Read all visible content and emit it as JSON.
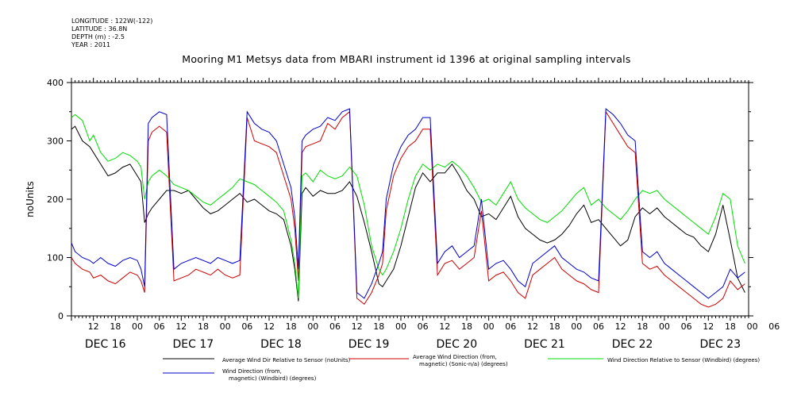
{
  "meta": {
    "longitude": "LONGITUDE : 122W(-122)",
    "latitude": "LATITUDE : 36.8N",
    "depth": "DEPTH (m) : -2.5",
    "year": "YEAR : 2011"
  },
  "chart_data": {
    "type": "line",
    "title": "Mooring M1 Metsys data from MBARI instrument id 1396 at original sampling intervals",
    "ylabel": "noUnits",
    "xlabel": "",
    "ylim": [
      0,
      400
    ],
    "yticks": [
      0,
      100,
      200,
      300,
      400
    ],
    "ytick_labels": [
      "0",
      "100",
      "200",
      "300",
      "400"
    ],
    "xlim_hours": [
      0,
      185
    ],
    "hour_tick_labels": [
      "12",
      "18",
      "00",
      "06",
      "12",
      "18",
      "00",
      "06",
      "12",
      "18",
      "00",
      "06",
      "12",
      "18",
      "00",
      "06",
      "12",
      "18",
      "00",
      "06",
      "12",
      "18",
      "00",
      "06",
      "12",
      "18",
      "00",
      "06",
      "12",
      "18",
      "00",
      "06"
    ],
    "day_labels": [
      "DEC 16",
      "DEC 17",
      "DEC 18",
      "DEC 19",
      "DEC 20",
      "DEC 21",
      "DEC 22",
      "DEC 23"
    ],
    "grid": false,
    "legend_placement": "bottom",
    "series": [
      {
        "name": "Average Wind Dir Relative to Sensor (noUnits)",
        "color": "#000000",
        "x": [
          0,
          1,
          3,
          5,
          6,
          8,
          10,
          12,
          14,
          16,
          18,
          19,
          20,
          21,
          22,
          24,
          26,
          28,
          30,
          32,
          34,
          36,
          38,
          40,
          42,
          44,
          46,
          48,
          50,
          52,
          54,
          56,
          58,
          60,
          61,
          62,
          63,
          64,
          66,
          68,
          70,
          72,
          74,
          76,
          78,
          80,
          82,
          84,
          85,
          86,
          88,
          90,
          92,
          94,
          96,
          98,
          100,
          102,
          104,
          106,
          108,
          110,
          112,
          114,
          116,
          118,
          120,
          122,
          124,
          126,
          128,
          130,
          132,
          134,
          136,
          138,
          140,
          142,
          144,
          146,
          148,
          150,
          152,
          154,
          156,
          158,
          160,
          162,
          164,
          166,
          168,
          170,
          172,
          174,
          176,
          178,
          180,
          182,
          184
        ],
        "y": [
          320,
          325,
          300,
          290,
          280,
          260,
          240,
          245,
          255,
          260,
          240,
          230,
          160,
          175,
          185,
          200,
          215,
          215,
          210,
          215,
          200,
          185,
          175,
          180,
          190,
          200,
          210,
          195,
          200,
          190,
          180,
          175,
          165,
          120,
          80,
          25,
          210,
          220,
          205,
          215,
          210,
          210,
          215,
          230,
          205,
          160,
          110,
          55,
          50,
          60,
          80,
          120,
          170,
          220,
          245,
          230,
          245,
          245,
          260,
          240,
          215,
          200,
          170,
          175,
          165,
          185,
          205,
          170,
          150,
          140,
          130,
          125,
          130,
          140,
          155,
          175,
          190,
          160,
          165,
          150,
          135,
          120,
          130,
          170,
          185,
          175,
          185,
          170,
          160,
          150,
          140,
          135,
          120,
          110,
          140,
          190,
          130,
          65,
          40
        ]
      },
      {
        "name": "Average Wind Direction (from, magnetic) (Sonic-n/a) (degrees)",
        "color": "#cc0000",
        "x": [
          0,
          1,
          3,
          5,
          6,
          8,
          10,
          12,
          14,
          16,
          18,
          19,
          20,
          21,
          22,
          24,
          26,
          28,
          30,
          32,
          34,
          36,
          38,
          40,
          42,
          44,
          46,
          48,
          50,
          52,
          54,
          56,
          58,
          60,
          61,
          62,
          63,
          64,
          66,
          68,
          70,
          72,
          74,
          76,
          78,
          80,
          82,
          84,
          85,
          86,
          88,
          90,
          92,
          94,
          96,
          98,
          100,
          102,
          104,
          106,
          108,
          110,
          112,
          114,
          116,
          118,
          120,
          122,
          124,
          126,
          128,
          130,
          132,
          134,
          136,
          138,
          140,
          142,
          144,
          146,
          148,
          150,
          152,
          154,
          156,
          158,
          160,
          162,
          164,
          166,
          168,
          170,
          172,
          174,
          176,
          178,
          180,
          182,
          184
        ],
        "y": [
          100,
          90,
          80,
          75,
          65,
          70,
          60,
          55,
          65,
          75,
          70,
          60,
          40,
          300,
          315,
          325,
          315,
          60,
          65,
          70,
          80,
          75,
          70,
          80,
          70,
          65,
          70,
          340,
          300,
          295,
          290,
          280,
          240,
          200,
          150,
          60,
          280,
          290,
          295,
          300,
          330,
          320,
          340,
          350,
          30,
          20,
          40,
          70,
          90,
          180,
          240,
          270,
          290,
          300,
          320,
          320,
          70,
          90,
          95,
          80,
          90,
          100,
          180,
          60,
          70,
          75,
          60,
          40,
          30,
          70,
          80,
          90,
          100,
          80,
          70,
          60,
          55,
          45,
          40,
          350,
          330,
          310,
          290,
          280,
          90,
          80,
          85,
          70,
          60,
          50,
          40,
          30,
          20,
          15,
          20,
          30,
          60,
          45,
          55
        ]
      },
      {
        "name": "Wind Direction Relative to Sensor (Windbird) (degrees)",
        "color": "#00dd00",
        "x": [
          0,
          1,
          3,
          5,
          6,
          8,
          10,
          12,
          14,
          16,
          18,
          19,
          20,
          21,
          22,
          24,
          26,
          28,
          30,
          32,
          34,
          36,
          38,
          40,
          42,
          44,
          46,
          48,
          50,
          52,
          54,
          56,
          58,
          60,
          61,
          62,
          63,
          64,
          66,
          68,
          70,
          72,
          74,
          76,
          78,
          80,
          82,
          84,
          85,
          86,
          88,
          90,
          92,
          94,
          96,
          98,
          100,
          102,
          104,
          106,
          108,
          110,
          112,
          114,
          116,
          118,
          120,
          122,
          124,
          126,
          128,
          130,
          132,
          134,
          136,
          138,
          140,
          142,
          144,
          146,
          148,
          150,
          152,
          154,
          156,
          158,
          160,
          162,
          164,
          166,
          168,
          170,
          172,
          174,
          176,
          178,
          180,
          182,
          184
        ],
        "y": [
          340,
          345,
          335,
          300,
          310,
          280,
          265,
          270,
          280,
          275,
          265,
          255,
          200,
          230,
          240,
          250,
          240,
          225,
          220,
          215,
          205,
          195,
          190,
          200,
          210,
          220,
          235,
          230,
          225,
          215,
          205,
          195,
          180,
          130,
          90,
          30,
          240,
          245,
          230,
          250,
          240,
          235,
          240,
          255,
          240,
          190,
          120,
          80,
          70,
          80,
          110,
          150,
          200,
          240,
          260,
          250,
          260,
          255,
          265,
          255,
          240,
          220,
          195,
          200,
          190,
          210,
          230,
          200,
          185,
          175,
          165,
          160,
          170,
          180,
          195,
          210,
          220,
          190,
          200,
          185,
          175,
          165,
          180,
          200,
          215,
          210,
          215,
          200,
          190,
          180,
          170,
          160,
          150,
          140,
          170,
          210,
          200,
          120,
          90
        ]
      },
      {
        "name": "Wind Direction (from, magnetic) (Windbird) (degrees)",
        "color": "#0000cc",
        "x": [
          0,
          1,
          3,
          5,
          6,
          8,
          10,
          12,
          14,
          16,
          18,
          19,
          20,
          21,
          22,
          24,
          26,
          28,
          30,
          32,
          34,
          36,
          38,
          40,
          42,
          44,
          46,
          48,
          50,
          52,
          54,
          56,
          58,
          60,
          61,
          62,
          63,
          64,
          66,
          68,
          70,
          72,
          74,
          76,
          78,
          80,
          82,
          84,
          85,
          86,
          88,
          90,
          92,
          94,
          96,
          98,
          100,
          102,
          104,
          106,
          108,
          110,
          112,
          114,
          116,
          118,
          120,
          122,
          124,
          126,
          128,
          130,
          132,
          134,
          136,
          138,
          140,
          142,
          144,
          146,
          148,
          150,
          152,
          154,
          156,
          158,
          160,
          162,
          164,
          166,
          168,
          170,
          172,
          174,
          176,
          178,
          180,
          182,
          184
        ],
        "y": [
          125,
          110,
          100,
          95,
          90,
          100,
          90,
          85,
          95,
          100,
          95,
          80,
          50,
          330,
          340,
          350,
          345,
          80,
          90,
          95,
          100,
          95,
          90,
          100,
          95,
          90,
          95,
          350,
          330,
          320,
          315,
          300,
          260,
          220,
          170,
          80,
          300,
          310,
          320,
          325,
          340,
          335,
          350,
          355,
          40,
          30,
          55,
          90,
          110,
          200,
          260,
          290,
          310,
          320,
          340,
          340,
          90,
          110,
          120,
          100,
          110,
          120,
          200,
          80,
          90,
          95,
          80,
          60,
          50,
          90,
          100,
          110,
          120,
          100,
          90,
          80,
          75,
          65,
          60,
          355,
          345,
          330,
          310,
          300,
          110,
          100,
          110,
          90,
          80,
          70,
          60,
          50,
          40,
          30,
          40,
          50,
          80,
          65,
          75
        ]
      }
    ]
  }
}
